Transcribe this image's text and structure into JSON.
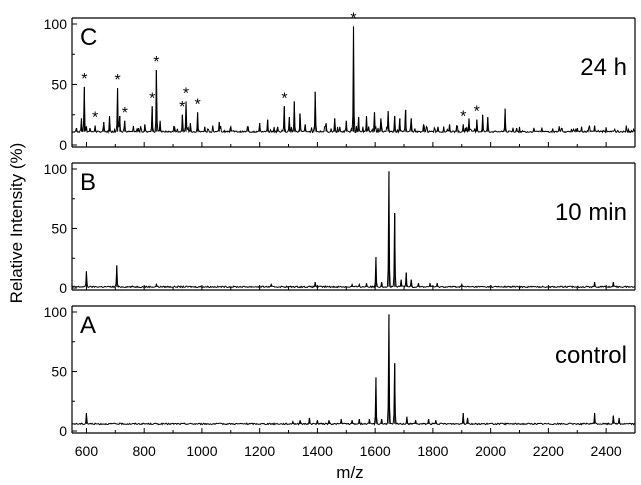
{
  "chart_data": {
    "type": "line",
    "xlabel": "m/z",
    "ylabel": "Relative Intensity (%)",
    "xlim": [
      550,
      2500
    ],
    "x_ticks": [
      600,
      800,
      1000,
      1200,
      1400,
      1600,
      1800,
      2000,
      2200,
      2400
    ],
    "ylim": [
      0,
      100
    ],
    "y_ticks": [
      0,
      50,
      100
    ],
    "grid": false,
    "panels": [
      {
        "letter": "C",
        "label": "24 h",
        "baseline": 11,
        "peaks": [
          [
            566,
            14
          ],
          [
            583,
            22
          ],
          [
            593,
            48
          ],
          [
            612,
            14
          ],
          [
            630,
            16
          ],
          [
            660,
            19
          ],
          [
            680,
            24
          ],
          [
            708,
            47
          ],
          [
            716,
            24
          ],
          [
            733,
            20
          ],
          [
            780,
            14
          ],
          [
            802,
            17
          ],
          [
            828,
            32
          ],
          [
            842,
            62
          ],
          [
            855,
            20
          ],
          [
            905,
            15
          ],
          [
            932,
            25
          ],
          [
            945,
            36
          ],
          [
            960,
            18
          ],
          [
            985,
            27
          ],
          [
            1010,
            15
          ],
          [
            1060,
            19
          ],
          [
            1100,
            15
          ],
          [
            1160,
            15
          ],
          [
            1200,
            18
          ],
          [
            1228,
            21
          ],
          [
            1262,
            15
          ],
          [
            1286,
            32
          ],
          [
            1303,
            23
          ],
          [
            1320,
            36
          ],
          [
            1339,
            26
          ],
          [
            1358,
            17
          ],
          [
            1392,
            44
          ],
          [
            1430,
            18
          ],
          [
            1460,
            22
          ],
          [
            1500,
            20
          ],
          [
            1525,
            98
          ],
          [
            1543,
            23
          ],
          [
            1570,
            24
          ],
          [
            1598,
            27
          ],
          [
            1620,
            22
          ],
          [
            1645,
            28
          ],
          [
            1668,
            24
          ],
          [
            1686,
            22
          ],
          [
            1706,
            29
          ],
          [
            1725,
            22
          ],
          [
            1768,
            17
          ],
          [
            1818,
            15
          ],
          [
            1858,
            17
          ],
          [
            1882,
            15
          ],
          [
            1905,
            17
          ],
          [
            1925,
            22
          ],
          [
            1952,
            21
          ],
          [
            1972,
            25
          ],
          [
            1990,
            23
          ],
          [
            2050,
            30
          ],
          [
            2090,
            14
          ],
          [
            2150,
            13
          ],
          [
            2300,
            14
          ],
          [
            2360,
            16
          ],
          [
            2440,
            12
          ]
        ],
        "annotations": [
          [
            593,
            "*"
          ],
          [
            630,
            "*"
          ],
          [
            708,
            "*"
          ],
          [
            733,
            "*"
          ],
          [
            828,
            "*"
          ],
          [
            842,
            "*"
          ],
          [
            932,
            "*"
          ],
          [
            945,
            "*"
          ],
          [
            985,
            "*"
          ],
          [
            1286,
            "*"
          ],
          [
            1525,
            "*"
          ],
          [
            1905,
            "*"
          ],
          [
            1952,
            "*"
          ]
        ]
      },
      {
        "letter": "B",
        "label": "10 min",
        "baseline": 1,
        "peaks": [
          [
            600,
            14
          ],
          [
            705,
            19
          ],
          [
            842,
            3
          ],
          [
            1240,
            3
          ],
          [
            1392,
            5
          ],
          [
            1520,
            3
          ],
          [
            1545,
            3
          ],
          [
            1570,
            4
          ],
          [
            1603,
            26
          ],
          [
            1622,
            5
          ],
          [
            1648,
            98
          ],
          [
            1668,
            63
          ],
          [
            1690,
            7
          ],
          [
            1708,
            13
          ],
          [
            1725,
            7
          ],
          [
            1750,
            4
          ],
          [
            1790,
            4
          ],
          [
            1815,
            4
          ],
          [
            1900,
            3
          ],
          [
            2360,
            5
          ],
          [
            2425,
            5
          ]
        ],
        "annotations": []
      },
      {
        "letter": "A",
        "label": "control",
        "baseline": 6,
        "peaks": [
          [
            600,
            15
          ],
          [
            1315,
            8
          ],
          [
            1340,
            9
          ],
          [
            1372,
            11
          ],
          [
            1400,
            9
          ],
          [
            1440,
            9
          ],
          [
            1482,
            10
          ],
          [
            1520,
            9
          ],
          [
            1545,
            10
          ],
          [
            1580,
            10
          ],
          [
            1603,
            45
          ],
          [
            1622,
            10
          ],
          [
            1648,
            98
          ],
          [
            1668,
            57
          ],
          [
            1710,
            12
          ],
          [
            1740,
            9
          ],
          [
            1785,
            10
          ],
          [
            1810,
            9
          ],
          [
            1905,
            15
          ],
          [
            1920,
            11
          ],
          [
            2360,
            15
          ],
          [
            2425,
            13
          ],
          [
            2445,
            11
          ]
        ],
        "annotations": []
      }
    ]
  }
}
